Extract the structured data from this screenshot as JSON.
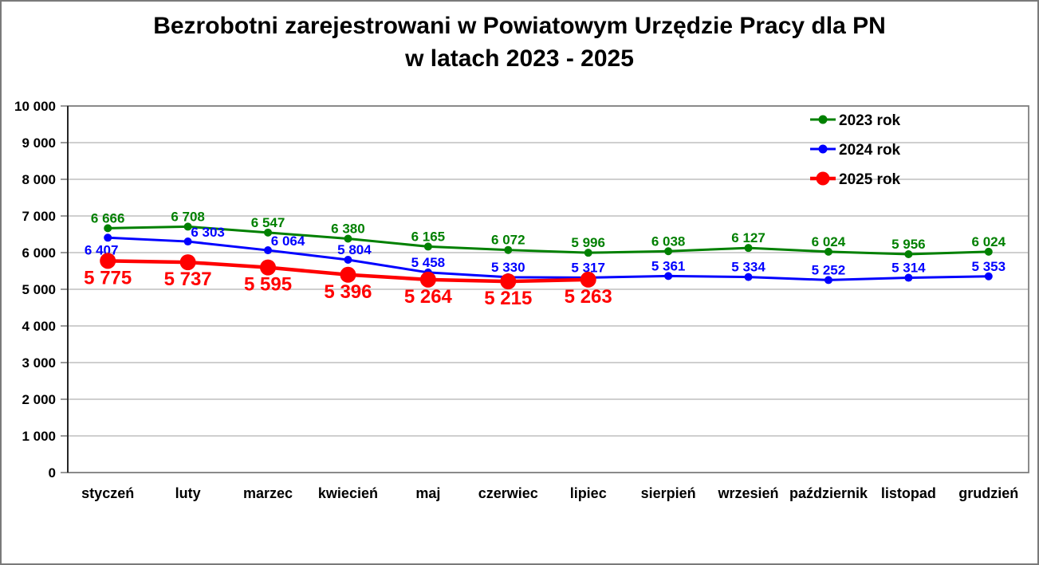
{
  "chart_data": {
    "type": "line",
    "title_line1": "Bezrobotni zarejestrowani w Powiatowym Urzędzie Pracy dla PN",
    "title_line2": "w latach 2023 - 2025",
    "categories": [
      "styczeń",
      "luty",
      "marzec",
      "kwiecień",
      "maj",
      "czerwiec",
      "lipiec",
      "sierpień",
      "wrzesień",
      "październik",
      "listopad",
      "grudzień"
    ],
    "series": [
      {
        "name": "2023 rok",
        "color": "#008000",
        "values": [
          6666,
          6708,
          6547,
          6380,
          6165,
          6072,
          5996,
          6038,
          6127,
          6024,
          5956,
          6024
        ]
      },
      {
        "name": "2024 rok",
        "color": "#0000FF",
        "values": [
          6407,
          6303,
          6064,
          5804,
          5458,
          5330,
          5317,
          5361,
          5334,
          5252,
          5314,
          5353
        ]
      },
      {
        "name": "2025 rok",
        "color": "#FF0000",
        "values": [
          5775,
          5737,
          5595,
          5396,
          5264,
          5215,
          5263
        ]
      }
    ],
    "y_axis": {
      "min": 0,
      "max": 10000,
      "step": 1000,
      "tick_labels": [
        "0",
        "1 000",
        "2 000",
        "3 000",
        "4 000",
        "5 000",
        "6 000",
        "7 000",
        "8 000",
        "9 000",
        "10 000"
      ]
    },
    "legend": {
      "position": "top-right",
      "entries": [
        "2023 rok",
        "2024 rok",
        "2025 rok"
      ]
    },
    "grid": true,
    "grid_color": "#BFBFBF",
    "plot_border_color": "#808080",
    "axis_line_color": "#262626",
    "text_color": "#000000"
  }
}
